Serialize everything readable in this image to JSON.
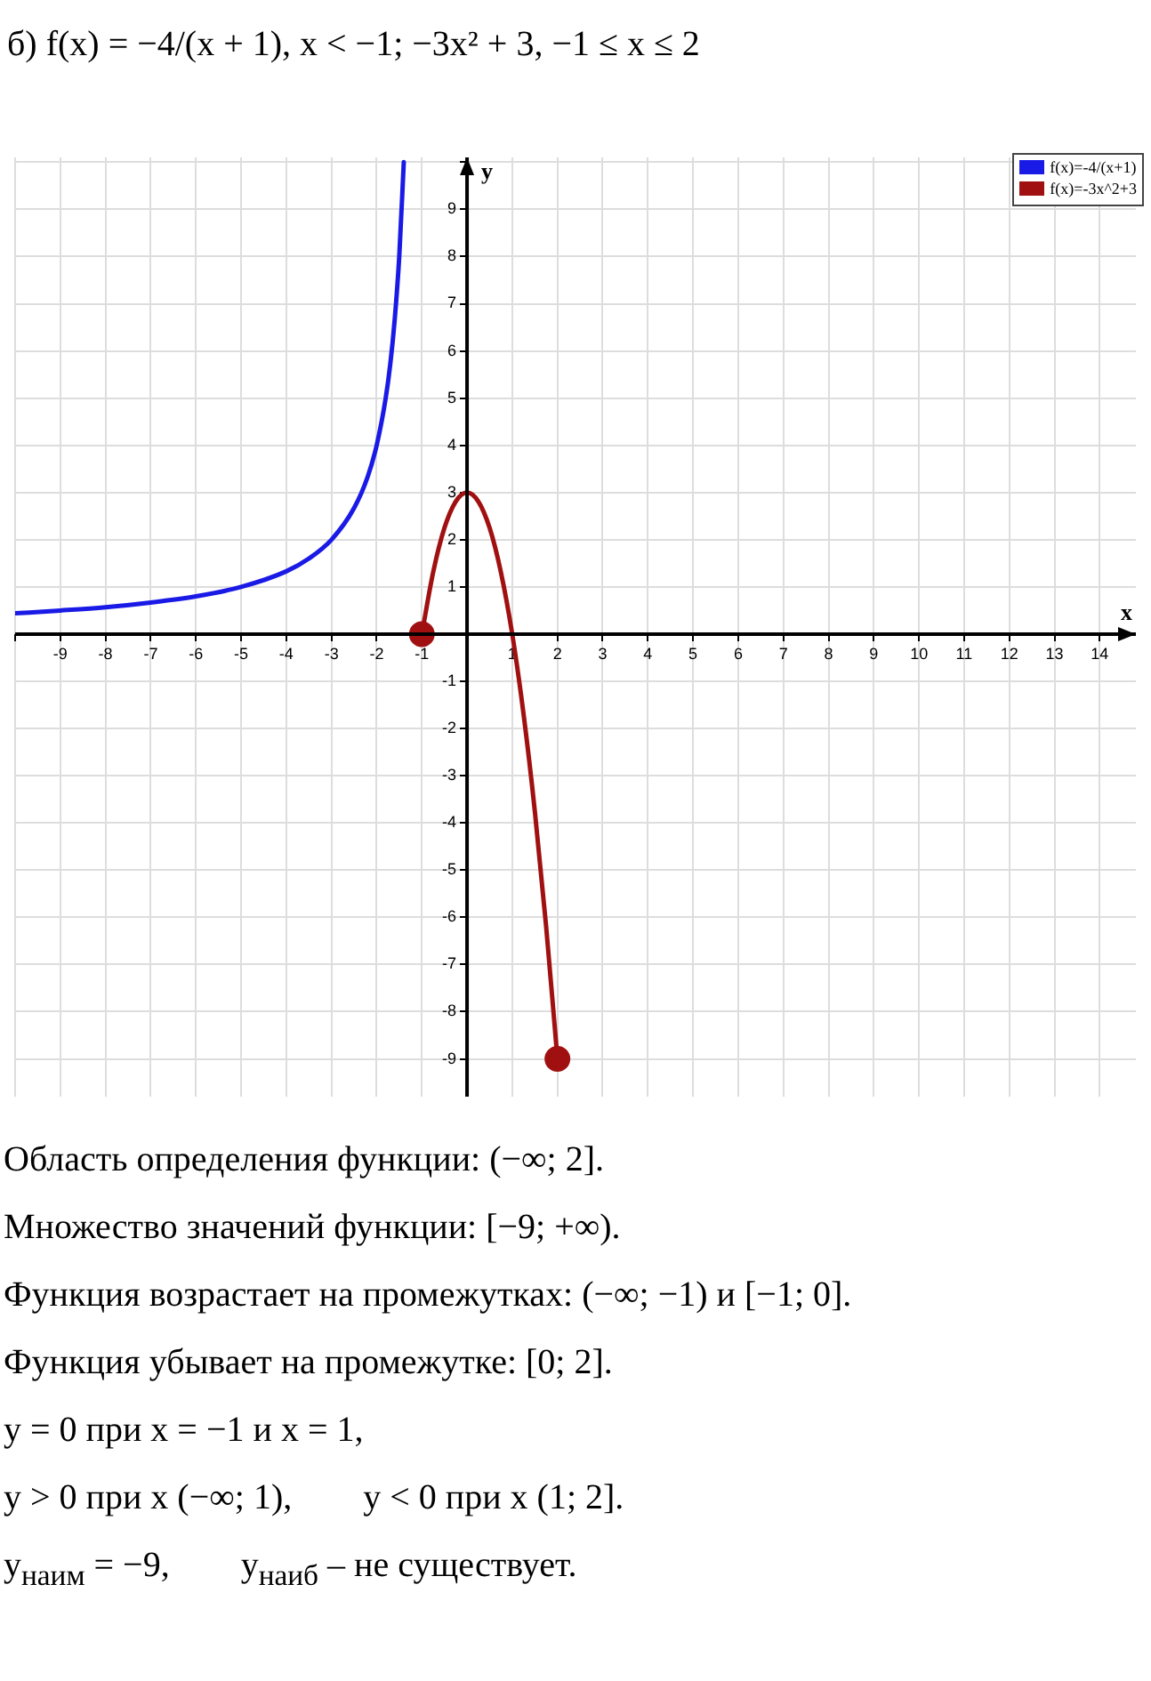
{
  "chart_data": {
    "type": "line",
    "title": "б) f(x) = −4/(x + 1), x < −1;  −3x² + 3, −1 ≤ x ≤ 2",
    "xlabel": "x",
    "ylabel": "y",
    "xlim": [
      -10,
      14.8
    ],
    "ylim": [
      -9.8,
      10.1
    ],
    "xticks": [
      -9,
      -8,
      -7,
      -6,
      -5,
      -4,
      -3,
      -2,
      -1,
      1,
      2,
      3,
      4,
      5,
      6,
      7,
      8,
      9,
      10,
      11,
      12,
      13,
      14
    ],
    "yticks": [
      -9,
      -8,
      -7,
      -6,
      -5,
      -4,
      -3,
      -2,
      -1,
      1,
      2,
      3,
      4,
      5,
      6,
      7,
      8,
      9
    ],
    "grid": true,
    "legend": "top right",
    "series": [
      {
        "name": "f(x)=-4/(x+1)",
        "color": "#1a1ae6",
        "x": [
          -10,
          -9,
          -8,
          -7,
          -6,
          -5,
          -4,
          -3.5,
          -3,
          -2.5,
          -2.2,
          -2,
          -1.8,
          -1.7,
          -1.6,
          -1.5,
          -1.4
        ],
        "values": [
          0.44,
          0.5,
          0.57,
          0.67,
          0.8,
          1,
          1.33,
          1.6,
          2,
          2.67,
          3.33,
          4,
          5,
          5.71,
          6.67,
          8,
          10
        ]
      },
      {
        "name": "f(x)=-3x^2+3",
        "color": "#a01010",
        "x": [
          -1,
          -0.75,
          -0.5,
          -0.25,
          0,
          0.25,
          0.5,
          0.75,
          1,
          1.25,
          1.5,
          1.75,
          2
        ],
        "values": [
          0,
          1.31,
          2.25,
          2.81,
          3,
          2.81,
          2.25,
          1.31,
          0,
          -1.69,
          -3.75,
          -6.19,
          -9
        ]
      },
      {
        "type": "scatter",
        "color": "#a01010",
        "marker": "circle",
        "x": [
          -1,
          2
        ],
        "values": [
          0,
          -9
        ]
      }
    ],
    "annotations": [
      "Область определения функции: (−∞; 2].",
      "Множество значений функции: [−9; +∞).",
      "Функция возрастает на промежутках: (−∞; −1) и [−1; 0].",
      "Функция убывает на промежутке: [0; 2].",
      "y = 0 при x = −1 и x = 1,",
      "y > 0 при x (−∞; 1),        y < 0 при x (1; 2].",
      "y$_{наим}$ = −9,        y$_{наиб}$ – не существует."
    ]
  }
}
